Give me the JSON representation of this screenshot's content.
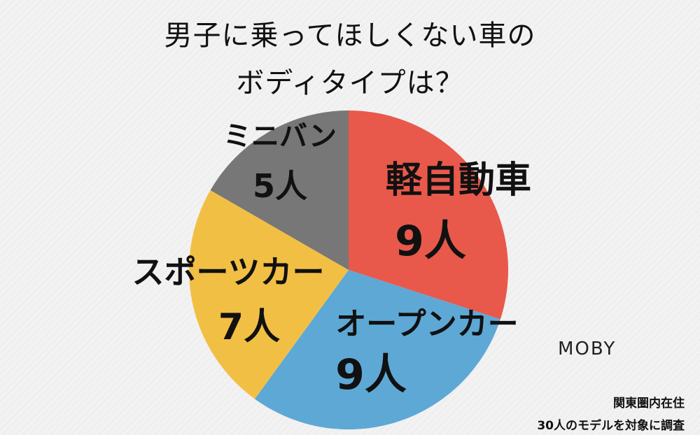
{
  "chart_data": {
    "type": "pie",
    "title_lines": [
      "男子に乗ってほしくない車の",
      "ボディタイプは？"
    ],
    "unit": "人",
    "slices": [
      {
        "label": "軽自動車",
        "value": 9,
        "value_text": "9人",
        "color": "#e8594b"
      },
      {
        "label": "オープンカー",
        "value": 9,
        "value_text": "9人",
        "color": "#5ea8d6"
      },
      {
        "label": "スポーツカー",
        "value": 7,
        "value_text": "7人",
        "color": "#f2bf45"
      },
      {
        "label": "ミニバン",
        "value": 5,
        "value_text": "5人",
        "color": "#777777"
      }
    ]
  },
  "brand": "MOBY",
  "notes": [
    "関東圏内在住",
    "30人のモデルを対象に調査"
  ]
}
